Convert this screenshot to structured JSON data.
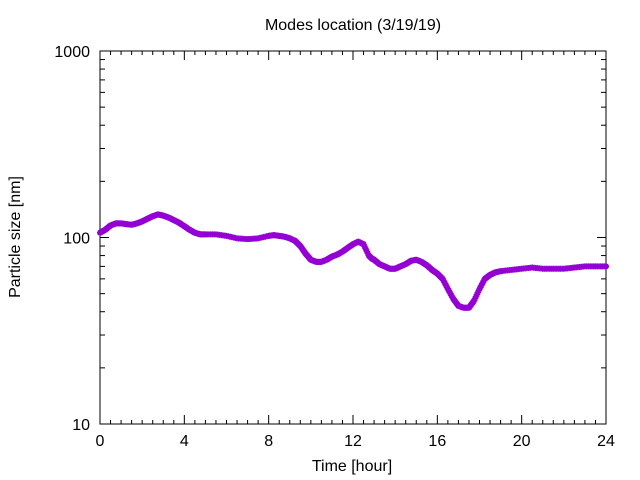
{
  "chart_data": {
    "type": "scatter",
    "title": "Modes location (3/19/19)",
    "xlabel": "Time [hour]",
    "ylabel": "Particle size [nm]",
    "xlim": [
      0,
      24
    ],
    "ylim": [
      10,
      1000
    ],
    "yscale": "log",
    "grid": false,
    "legend": "none",
    "marker_color": "#9400d3",
    "x_ticks": [
      0,
      4,
      8,
      12,
      16,
      20,
      24
    ],
    "y_ticks": [
      10,
      100,
      1000
    ],
    "series": [
      {
        "x": [
          0,
          0.25,
          0.5,
          0.75,
          1.0,
          1.25,
          1.5,
          1.75,
          2.0,
          2.25,
          2.5,
          2.75,
          3.0,
          3.25,
          3.5,
          3.75,
          4.0,
          4.25,
          4.5,
          4.75,
          5.0,
          5.5,
          6.0,
          6.5,
          7.0,
          7.5,
          8.0,
          8.25,
          8.5,
          8.75,
          9.0,
          9.25,
          9.5,
          9.75,
          10.0,
          10.25,
          10.5,
          10.75,
          11.0,
          11.25,
          11.5,
          11.75,
          12.0,
          12.25,
          12.5,
          12.75,
          12.9,
          13.0,
          13.25,
          13.5,
          13.75,
          14.0,
          14.25,
          14.5,
          14.75,
          15.0,
          15.25,
          15.5,
          15.75,
          16.0,
          16.25,
          16.5,
          16.75,
          17.0,
          17.25,
          17.5,
          17.75,
          18.0,
          18.25,
          18.5,
          18.75,
          19.0,
          19.5,
          20.0,
          20.5,
          21.0,
          21.5,
          22.0,
          22.5,
          23.0,
          23.5,
          24.0
        ],
        "y": [
          106,
          110,
          116,
          119,
          119,
          118,
          117,
          119,
          122,
          126,
          130,
          133,
          131,
          128,
          124,
          120,
          115,
          110,
          106,
          104,
          104,
          104,
          102,
          99,
          98,
          99,
          102,
          103,
          102,
          101,
          99,
          96,
          90,
          82,
          76,
          74,
          74,
          76,
          79,
          81,
          84,
          88,
          92,
          95,
          92,
          80,
          77,
          76,
          72,
          70,
          68,
          68,
          70,
          72,
          75,
          76,
          74,
          71,
          67,
          64,
          60,
          53,
          47,
          43,
          42,
          42,
          46,
          53,
          60,
          63,
          65,
          66,
          67,
          68,
          69,
          68,
          68,
          68,
          69,
          70,
          70,
          70
        ]
      }
    ]
  }
}
